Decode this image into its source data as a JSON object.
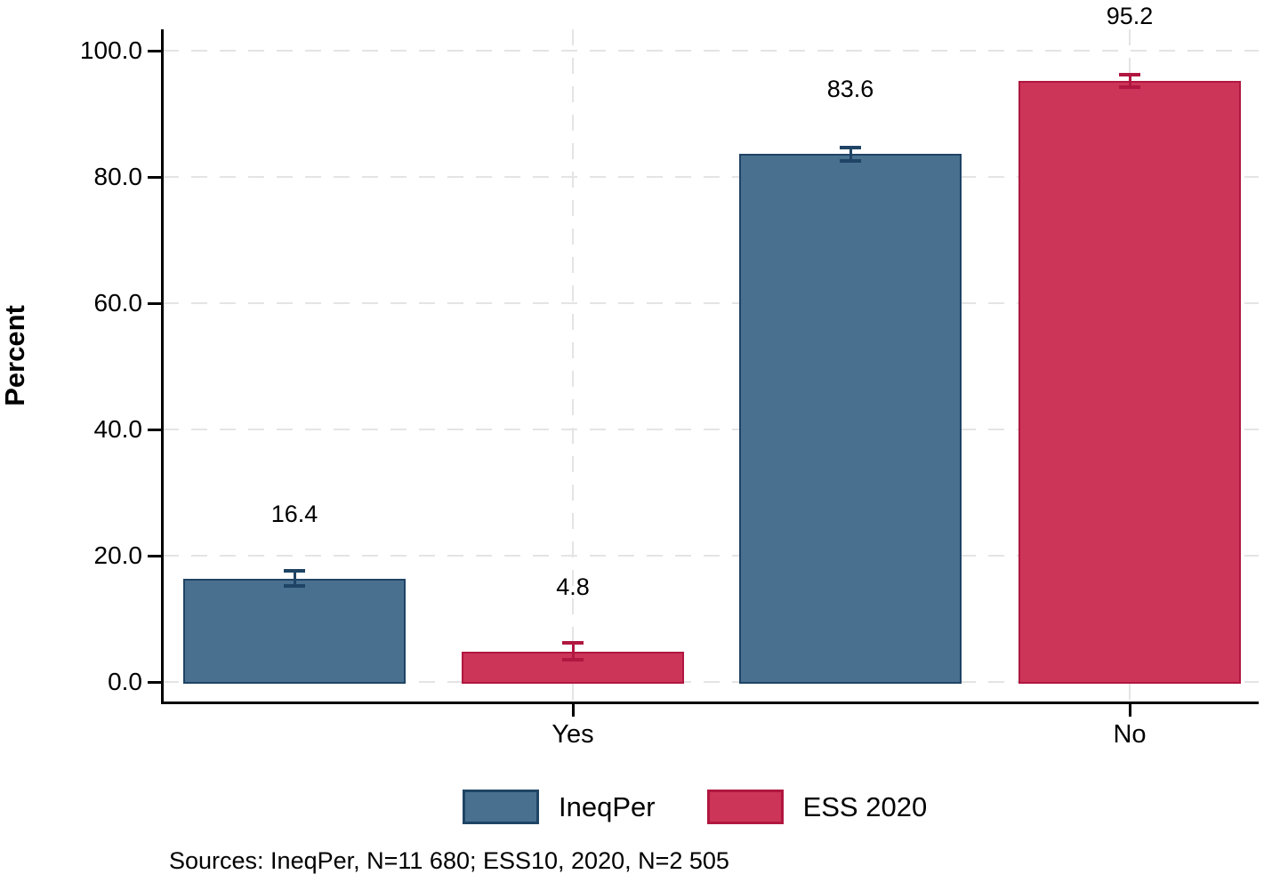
{
  "chart_data": {
    "type": "bar",
    "title": "",
    "xlabel": "",
    "ylabel": "Percent",
    "categories": [
      "Yes",
      "No"
    ],
    "series": [
      {
        "name": "IneqPer",
        "values": [
          16.4,
          83.6
        ],
        "ci_half": [
          1.0,
          0.9
        ],
        "color": "#49708F",
        "edge_color": "#1F4465"
      },
      {
        "name": "ESS 2020",
        "values": [
          4.8,
          95.2
        ],
        "ci_half": [
          1.2,
          0.9
        ],
        "color": "#CC3558",
        "edge_color": "#B11740"
      }
    ],
    "value_labels": [
      [
        "16.4",
        "83.6"
      ],
      [
        "4.8",
        "95.2"
      ]
    ],
    "error_bars": true,
    "ylim": [
      0,
      100
    ],
    "yticks": [
      {
        "value": 0,
        "label": "0.0"
      },
      {
        "value": 20,
        "label": "20.0"
      },
      {
        "value": 40,
        "label": "40.0"
      },
      {
        "value": 60,
        "label": "60.0"
      },
      {
        "value": 80,
        "label": "80.0"
      },
      {
        "value": 100,
        "label": "100.0"
      }
    ],
    "grid": {
      "horizontal": "dashed",
      "vertical_at_category_ticks": "dashed",
      "color": "#e4e4e4"
    },
    "legend_position": "bottom-center",
    "source_note": "Sources: IneqPer, N=11 680; ESS10, 2020, N=2 505"
  }
}
